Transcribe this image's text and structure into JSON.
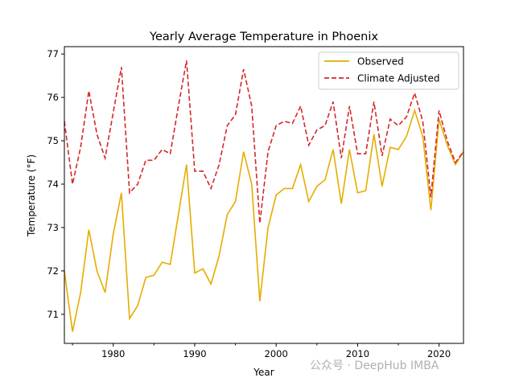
{
  "chart_data": {
    "type": "line",
    "title": "Yearly Average Temperature in Phoenix",
    "xlabel": "Year",
    "ylabel": "Temperature (°F)",
    "xlim": [
      1974,
      2023
    ],
    "ylim": [
      70.33,
      77.17
    ],
    "xticks": [
      1980,
      1990,
      2000,
      2010,
      2020
    ],
    "yticks": [
      71,
      72,
      73,
      74,
      75,
      76,
      77
    ],
    "grid": false,
    "legend_placement": "top-right",
    "x": [
      1974,
      1975,
      1976,
      1977,
      1978,
      1979,
      1980,
      1981,
      1982,
      1983,
      1984,
      1985,
      1986,
      1987,
      1988,
      1989,
      1990,
      1991,
      1992,
      1993,
      1994,
      1995,
      1996,
      1997,
      1998,
      1999,
      2000,
      2001,
      2002,
      2003,
      2004,
      2005,
      2006,
      2007,
      2008,
      2009,
      2010,
      2011,
      2012,
      2013,
      2014,
      2015,
      2016,
      2017,
      2018,
      2019,
      2020,
      2021,
      2022,
      2023
    ],
    "series": [
      {
        "name": "Observed",
        "color": "#e6ac00",
        "style": "solid",
        "values": [
          72.0,
          70.6,
          71.5,
          72.95,
          72.0,
          71.5,
          72.85,
          73.8,
          70.9,
          71.2,
          71.85,
          71.9,
          72.2,
          72.15,
          73.3,
          74.45,
          71.95,
          72.05,
          71.7,
          72.35,
          73.3,
          73.6,
          74.75,
          74.0,
          71.3,
          73.0,
          73.75,
          73.9,
          73.9,
          74.45,
          73.6,
          73.95,
          74.1,
          74.8,
          73.55,
          74.8,
          73.8,
          73.85,
          75.15,
          73.95,
          74.85,
          74.8,
          75.1,
          75.7,
          75.1,
          73.4,
          75.5,
          74.9,
          74.45,
          74.75
        ]
      },
      {
        "name": "Climate Adjusted",
        "color": "#d62728",
        "style": "dashed",
        "values": [
          75.45,
          74.0,
          74.85,
          76.15,
          75.15,
          74.6,
          75.65,
          76.7,
          73.8,
          74.0,
          74.55,
          74.55,
          74.8,
          74.7,
          75.8,
          76.85,
          74.3,
          74.3,
          73.9,
          74.45,
          75.35,
          75.6,
          76.65,
          75.8,
          73.1,
          74.75,
          75.35,
          75.45,
          75.4,
          75.8,
          74.9,
          75.25,
          75.35,
          75.9,
          74.6,
          75.8,
          74.7,
          74.7,
          75.9,
          74.65,
          75.5,
          75.35,
          75.55,
          76.1,
          75.45,
          73.7,
          75.7,
          75.0,
          74.5,
          74.75
        ]
      }
    ]
  },
  "watermark": "公众号 · DeepHub IMBA"
}
